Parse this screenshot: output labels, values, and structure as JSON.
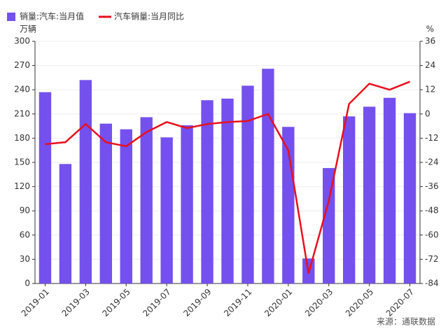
{
  "chart_data": {
    "type": "bar-line",
    "categories": [
      "2019-01",
      null,
      "2019-03",
      null,
      "2019-05",
      null,
      "2019-07",
      null,
      "2019-09",
      null,
      "2019-11",
      null,
      "2020-01",
      null,
      "2020-03",
      null,
      "2020-05",
      null,
      "2020-07"
    ],
    "series": [
      {
        "name": "销量:汽车:当月值",
        "type": "bar",
        "color": "#7450ee",
        "values": [
          237,
          148,
          252,
          198,
          191,
          206,
          181,
          196,
          227,
          229,
          245,
          266,
          194,
          31,
          143,
          207,
          219,
          230,
          211
        ]
      },
      {
        "name": "汽车销量:当月同比",
        "type": "line",
        "axis": "y2",
        "color": "#e8101c",
        "values": [
          -15,
          -14,
          -5,
          -14,
          -16,
          -9,
          -4,
          -7,
          -5,
          -4,
          -3.5,
          0,
          -18,
          -79,
          -43,
          5,
          15,
          12,
          16
        ]
      }
    ],
    "ylabel": "万辆",
    "y2label": "%",
    "ylim": [
      0,
      300
    ],
    "yticks": [
      0,
      30,
      60,
      90,
      120,
      150,
      180,
      210,
      240,
      270,
      300
    ],
    "y2lim": [
      -84,
      36
    ],
    "y2ticks": [
      -84,
      -72,
      -60,
      -48,
      -36,
      -24,
      -12,
      0,
      12,
      24,
      36
    ],
    "grid": true,
    "legend": "top-left",
    "source": "来源：通联数据"
  }
}
